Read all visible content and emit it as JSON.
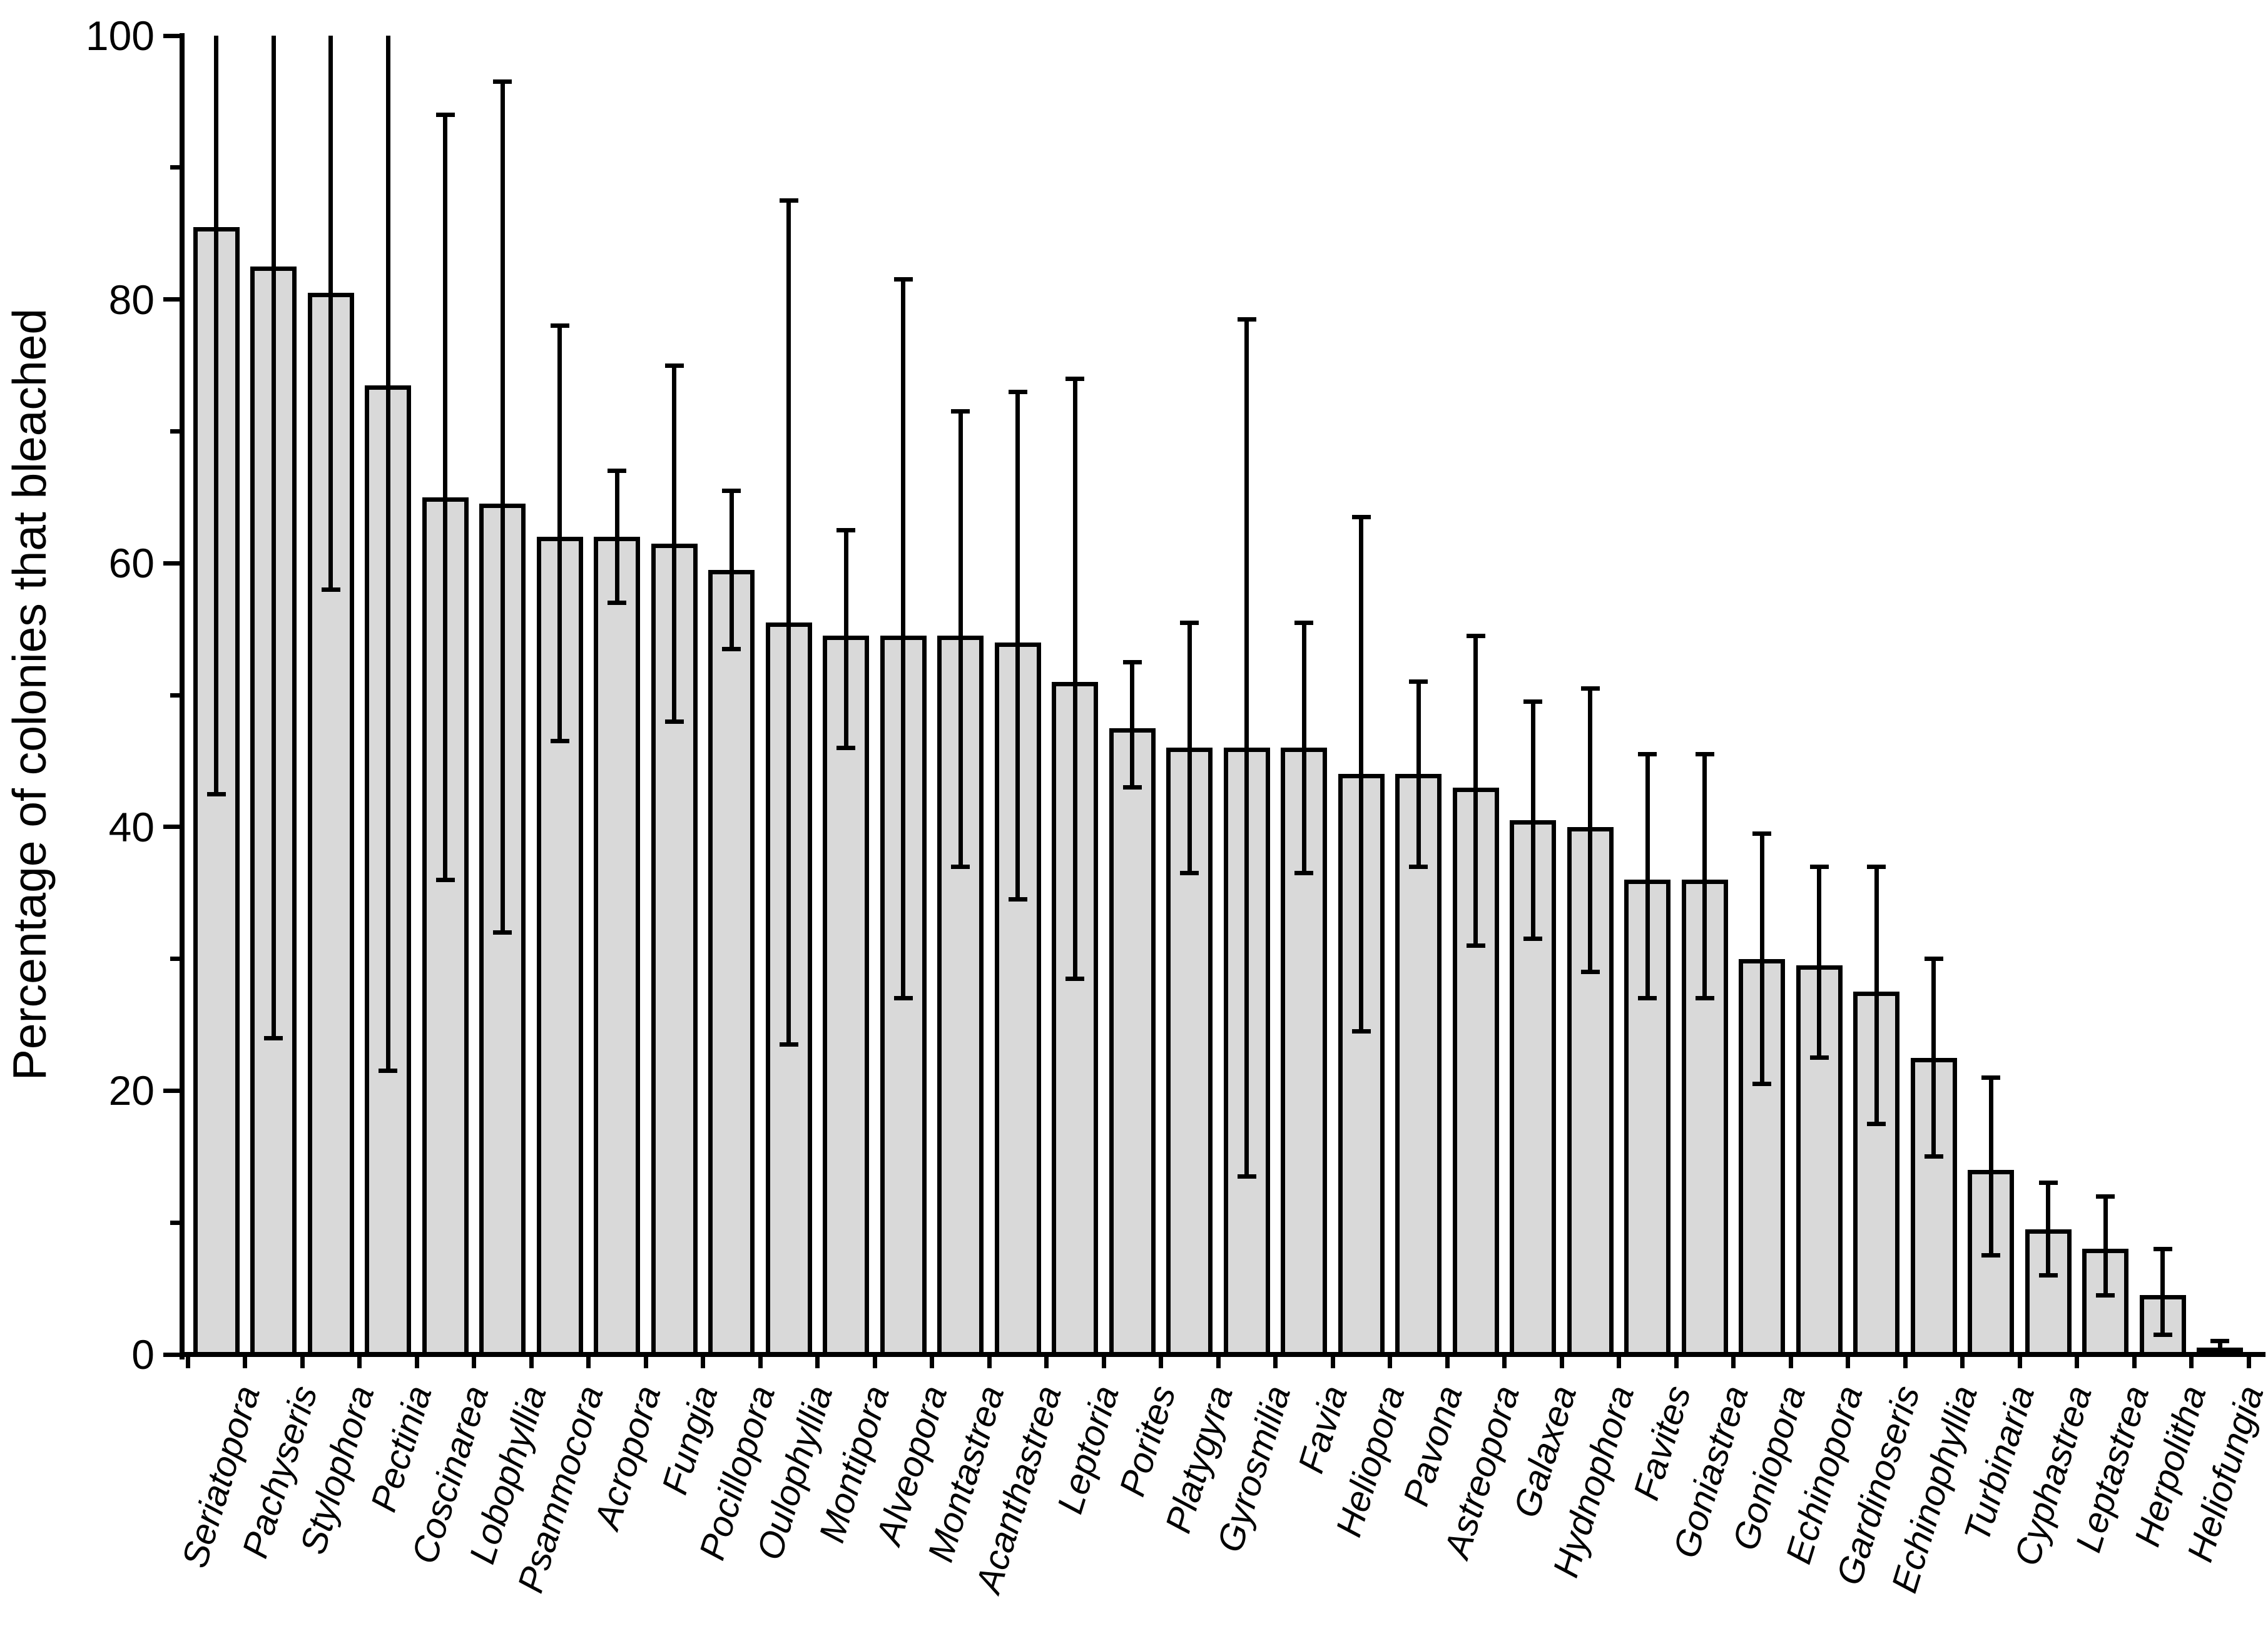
{
  "figure": {
    "background": "#ffffff",
    "ink_color": "#000000"
  },
  "chart_data": {
    "type": "bar",
    "title": "",
    "xlabel": "",
    "ylabel": "Percentage of colonies that bleached",
    "ylim": [
      0,
      100
    ],
    "grid": "off",
    "legend": "none",
    "bar_fill": "#d9d9d9",
    "bar_outline": "#000000",
    "error_bars": "asymmetric, black, capped (upper caps omitted where interval reaches 100)",
    "y_major_ticks": [
      0,
      20,
      40,
      60,
      80,
      100
    ],
    "y_minor_ticks": [
      10,
      30,
      50,
      70,
      90
    ],
    "categories": [
      "Seriatopora",
      "Pachyseris",
      "Stylophora",
      "Pectinia",
      "Coscinarea",
      "Lobophyllia",
      "Psammocora",
      "Acropora",
      "Fungia",
      "Pocillopora",
      "Oulophyllia",
      "Montipora",
      "Alveopora",
      "Montastrea",
      "Acanthastrea",
      "Leptoria",
      "Porites",
      "Platygyra",
      "Gyrosmilia",
      "Favia",
      "Heliopora",
      "Pavona",
      "Astreopora",
      "Galaxea",
      "Hydnophora",
      "Favites",
      "Goniastrea",
      "Goniopora",
      "Echinopora",
      "Gardinoseris",
      "Echinophyllia",
      "Turbinaria",
      "Cyphastrea",
      "Leptastrea",
      "Herpolitha",
      "Heliofungia"
    ],
    "values": [
      85.5,
      82.5,
      80.5,
      73.5,
      65,
      64.5,
      62,
      62,
      61.5,
      59.5,
      55.5,
      54.5,
      54.5,
      54.5,
      54,
      51,
      47.5,
      46,
      46,
      46,
      44,
      44,
      43,
      40.5,
      40,
      36,
      36,
      30,
      29.5,
      27.5,
      22.5,
      14,
      9.5,
      8,
      4.5,
      0.5
    ],
    "error_low": [
      42.5,
      24,
      58,
      21.5,
      36,
      32,
      46.5,
      57,
      48,
      53.5,
      23.5,
      46,
      27,
      37,
      34.5,
      28.5,
      43,
      36.5,
      13.5,
      36.5,
      24.5,
      37,
      31,
      31.5,
      29,
      27,
      27,
      20.5,
      22.5,
      17.5,
      15,
      7.5,
      6,
      4.5,
      1.5,
      0.1
    ],
    "error_high": [
      100,
      100,
      100,
      100,
      94,
      96.5,
      78,
      67,
      75,
      65.5,
      87.5,
      62.5,
      81.5,
      71.5,
      73,
      74,
      52.5,
      55.5,
      78.5,
      55.5,
      63.5,
      51,
      54.5,
      49.5,
      50.5,
      45.5,
      45.5,
      39.5,
      37,
      37,
      30,
      21,
      13,
      12,
      8,
      1
    ]
  },
  "y_axis": {
    "label": "Percentage of colonies that bleached",
    "tick_labels": [
      "0",
      "20",
      "40",
      "60",
      "80",
      "100"
    ]
  }
}
